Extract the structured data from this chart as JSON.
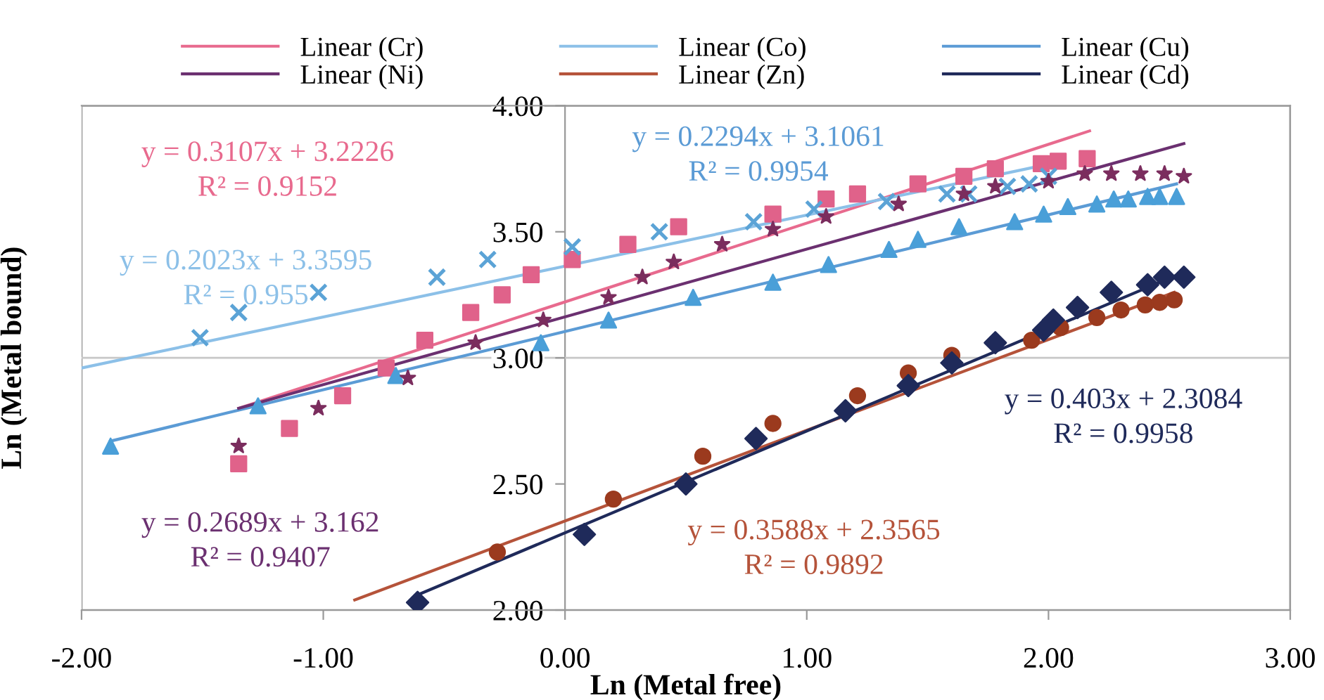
{
  "chart_data": {
    "type": "scatter",
    "xlabel": "Ln (Metal free)",
    "ylabel": "Ln (Metal bound)",
    "xlim": [
      -2,
      3
    ],
    "ylim": [
      2,
      4
    ],
    "xticks": [
      {
        "value": -2,
        "label": "-2.00"
      },
      {
        "value": -1,
        "label": "-1.00"
      },
      {
        "value": 0,
        "label": "0.00"
      },
      {
        "value": 1,
        "label": "1.00"
      },
      {
        "value": 2,
        "label": "2.00"
      },
      {
        "value": 3,
        "label": "3.00"
      }
    ],
    "yticks": [
      {
        "value": 2,
        "label": "2.00"
      },
      {
        "value": 2.5,
        "label": "2.50"
      },
      {
        "value": 3,
        "label": "3.00"
      },
      {
        "value": 3.5,
        "label": "3.50"
      },
      {
        "value": 4,
        "label": "4.00"
      }
    ],
    "grid": false,
    "legend": "top",
    "ref_lines": [
      {
        "axis": "y",
        "value": 3,
        "color": "#c8c8c8"
      }
    ],
    "series": [
      {
        "marker": "square",
        "color": "#e0628a",
        "x": [
          -1.35,
          -1.14,
          -0.92,
          -0.74,
          -0.58,
          -0.39,
          -0.26,
          -0.14,
          0.03,
          0.26,
          0.47,
          0.86,
          1.08,
          1.21,
          1.46,
          1.65,
          1.78,
          1.97,
          2.04,
          2.16
        ],
        "values": [
          2.58,
          2.72,
          2.85,
          2.96,
          3.07,
          3.18,
          3.25,
          3.33,
          3.39,
          3.45,
          3.52,
          3.57,
          3.63,
          3.65,
          3.69,
          3.72,
          3.75,
          3.77,
          3.78,
          3.79
        ]
      },
      {
        "marker": "cross",
        "color": "#5ba3d6",
        "x": [
          -1.51,
          -1.35,
          -1.02,
          -0.53,
          -0.32,
          0.03,
          0.39,
          0.78,
          1.03,
          1.33,
          1.58,
          1.67,
          1.83,
          1.92,
          2.0
        ],
        "values": [
          3.08,
          3.18,
          3.26,
          3.32,
          3.39,
          3.44,
          3.5,
          3.54,
          3.59,
          3.62,
          3.65,
          3.65,
          3.68,
          3.69,
          3.72
        ]
      },
      {
        "marker": "triangle",
        "color": "#4a9fd8",
        "x": [
          -1.88,
          -1.27,
          -0.7,
          -0.1,
          0.18,
          0.53,
          0.86,
          1.09,
          1.34,
          1.46,
          1.63,
          1.86,
          1.98,
          2.08,
          2.2,
          2.27,
          2.33,
          2.41,
          2.46,
          2.53
        ],
        "values": [
          2.65,
          2.81,
          2.93,
          3.06,
          3.15,
          3.24,
          3.3,
          3.37,
          3.43,
          3.47,
          3.52,
          3.54,
          3.57,
          3.6,
          3.61,
          3.63,
          3.63,
          3.64,
          3.64,
          3.64
        ]
      },
      {
        "marker": "star",
        "color": "#7b2d5e",
        "x": [
          -1.35,
          -1.02,
          -0.65,
          -0.37,
          -0.09,
          0.18,
          0.32,
          0.45,
          0.65,
          0.86,
          1.08,
          1.38,
          1.65,
          1.78,
          2.0,
          2.15,
          2.26,
          2.38,
          2.48,
          2.56
        ],
        "values": [
          2.65,
          2.8,
          2.92,
          3.06,
          3.15,
          3.24,
          3.32,
          3.38,
          3.45,
          3.51,
          3.56,
          3.61,
          3.65,
          3.68,
          3.7,
          3.73,
          3.73,
          3.73,
          3.73,
          3.72
        ]
      },
      {
        "marker": "circle",
        "color": "#9b3a1e",
        "x": [
          -0.28,
          0.2,
          0.57,
          0.86,
          1.21,
          1.42,
          1.6,
          1.93,
          2.05,
          2.2,
          2.3,
          2.4,
          2.46,
          2.52
        ],
        "values": [
          2.23,
          2.44,
          2.61,
          2.74,
          2.85,
          2.94,
          3.01,
          3.07,
          3.12,
          3.16,
          3.19,
          3.21,
          3.22,
          3.23
        ]
      },
      {
        "marker": "diamond",
        "color": "#1f2a5a",
        "x": [
          -0.61,
          0.08,
          0.5,
          0.79,
          1.16,
          1.42,
          1.6,
          1.78,
          1.98,
          2.02,
          2.12,
          2.26,
          2.41,
          2.48,
          2.56
        ],
        "values": [
          2.03,
          2.3,
          2.5,
          2.68,
          2.79,
          2.89,
          2.98,
          3.06,
          3.11,
          3.15,
          3.2,
          3.26,
          3.29,
          3.32,
          3.32
        ]
      },
      {
        "type": "line",
        "name": "Linear (Cr)",
        "color": "#e86a8e",
        "x": [
          -1.35,
          2.17
        ],
        "values": [
          2.8,
          3.9
        ]
      },
      {
        "type": "line",
        "name": "Linear (Co)",
        "color": "#8cc0e8",
        "x": [
          -2,
          2.06
        ],
        "values": [
          2.96,
          3.78
        ]
      },
      {
        "type": "line",
        "name": "Linear (Cu)",
        "color": "#5b9bd5",
        "x": [
          -1.88,
          2.53
        ],
        "values": [
          2.67,
          3.69
        ]
      },
      {
        "type": "line",
        "name": "Linear (Ni)",
        "color": "#6b3070",
        "x": [
          -1.35,
          2.56
        ],
        "values": [
          2.8,
          3.85
        ]
      },
      {
        "type": "line",
        "name": "Linear (Zn)",
        "color": "#b5533a",
        "x": [
          -0.87,
          2.52
        ],
        "values": [
          2.04,
          3.26
        ]
      },
      {
        "type": "line",
        "name": "Linear (Cd)",
        "color": "#1f2a5a",
        "x": [
          -0.61,
          2.56
        ],
        "values": [
          2.06,
          3.34
        ]
      }
    ],
    "annotations": [
      "y = 0.3107x + 3.2226\nR² = 0.9152",
      "y = 0.2023x + 3.3595\nR² = 0.955",
      "y = 0.2294x + 3.1061\nR² = 0.9954",
      "y = 0.2689x + 3.162\nR² = 0.9407",
      "y = 0.3588x + 2.3565\nR² = 0.9892",
      "y = 0.403x + 2.3084\nR² = 0.9958"
    ]
  }
}
